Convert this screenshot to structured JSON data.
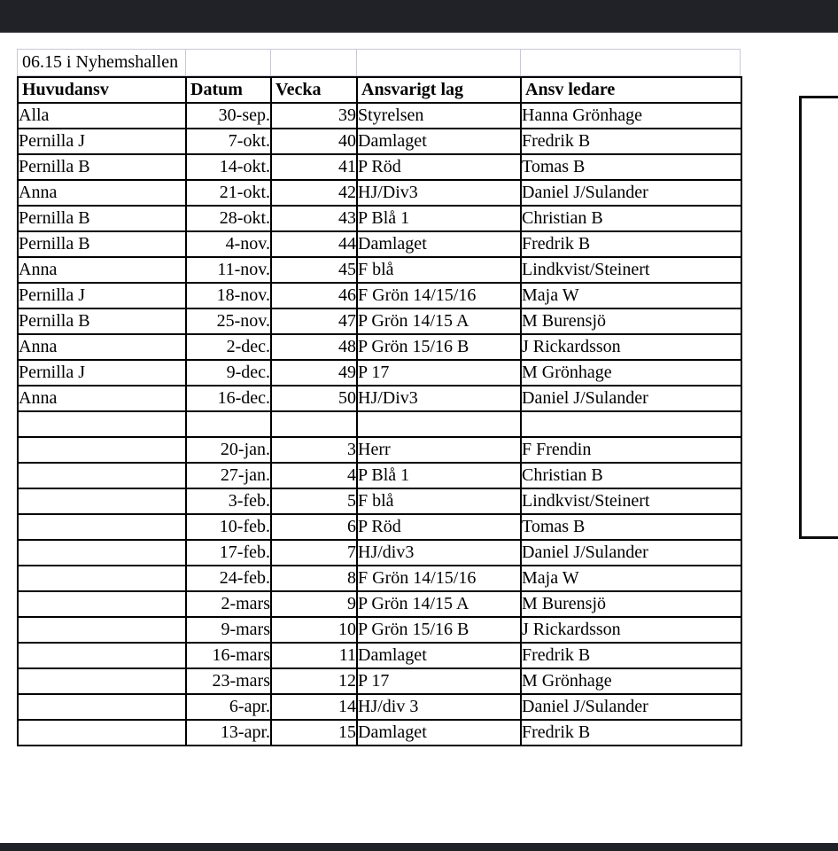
{
  "page": {
    "background": "#ffffff",
    "bar_color": "#202227",
    "table_border_color": "#000000",
    "light_grid_color": "#c9c9d4"
  },
  "title": "06.15 i Nyhemshallen",
  "table": {
    "columns": [
      "Huvudansv",
      "Datum",
      "Vecka",
      "Ansvarigt lag",
      "Ansv ledare"
    ],
    "rows": [
      [
        "Alla",
        "30-sep.",
        "39",
        "Styrelsen",
        "Hanna Grönhage"
      ],
      [
        "Pernilla J",
        "7-okt.",
        "40",
        "Damlaget",
        "Fredrik B"
      ],
      [
        "Pernilla B",
        "14-okt.",
        "41",
        "P Röd",
        "Tomas B"
      ],
      [
        "Anna",
        "21-okt.",
        "42",
        "HJ/Div3",
        "Daniel J/Sulander"
      ],
      [
        "Pernilla B",
        "28-okt.",
        "43",
        "P Blå 1",
        "Christian B"
      ],
      [
        "Pernilla B",
        "4-nov.",
        "44",
        "Damlaget",
        "Fredrik B"
      ],
      [
        "Anna",
        "11-nov.",
        "45",
        "F blå",
        "Lindkvist/Steinert"
      ],
      [
        "Pernilla J",
        "18-nov.",
        "46",
        "F Grön 14/15/16",
        "Maja W"
      ],
      [
        "Pernilla B",
        "25-nov.",
        "47",
        "P Grön 14/15 A",
        "M Burensjö"
      ],
      [
        "Anna",
        "2-dec.",
        "48",
        "P Grön 15/16 B",
        "J Rickardsson"
      ],
      [
        "Pernilla J",
        "9-dec.",
        "49",
        "P 17",
        "M Grönhage"
      ],
      [
        "Anna",
        "16-dec.",
        "50",
        "HJ/Div3",
        "Daniel J/Sulander"
      ],
      [
        "",
        "",
        "",
        "",
        ""
      ],
      [
        "",
        "20-jan.",
        "3",
        "Herr",
        "F Frendin"
      ],
      [
        "",
        "27-jan.",
        "4",
        "P Blå 1",
        "Christian B"
      ],
      [
        "",
        "3-feb.",
        "5",
        "F blå",
        "Lindkvist/Steinert"
      ],
      [
        "",
        "10-feb.",
        "6",
        "P Röd",
        "Tomas B"
      ],
      [
        "",
        "17-feb.",
        "7",
        "HJ/div3",
        "Daniel J/Sulander"
      ],
      [
        "",
        "24-feb.",
        "8",
        "F Grön 14/15/16",
        "Maja W"
      ],
      [
        "",
        "2-mars",
        "9",
        "P Grön 14/15 A",
        "M Burensjö"
      ],
      [
        "",
        "9-mars",
        "10",
        "P Grön 15/16 B",
        "J Rickardsson"
      ],
      [
        "",
        "16-mars",
        "11",
        "Damlaget",
        "Fredrik B"
      ],
      [
        "",
        "23-mars",
        "12",
        "P 17",
        "M Grönhage"
      ],
      [
        "",
        "6-apr.",
        "14",
        "HJ/div 3",
        "Daniel J/Sulander"
      ],
      [
        "",
        "13-apr.",
        "15",
        "Damlaget",
        "Fredrik B"
      ]
    ]
  }
}
